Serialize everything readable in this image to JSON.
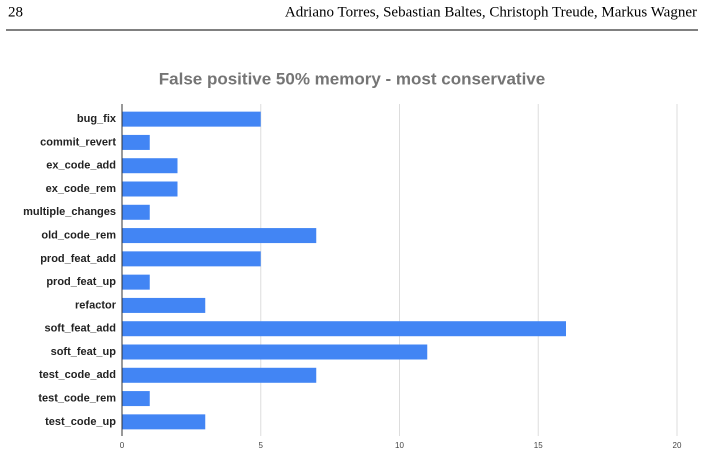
{
  "header": {
    "page_number": "28",
    "authors": "Adriano Torres, Sebastian Baltes, Christoph Treude, Markus Wagner"
  },
  "chart_data": {
    "type": "bar",
    "orientation": "horizontal",
    "title": "False positive 50% memory - most conservative",
    "categories": [
      "bug_fix",
      "commit_revert",
      "ex_code_add",
      "ex_code_rem",
      "multiple_changes",
      "old_code_rem",
      "prod_feat_add",
      "prod_feat_up",
      "refactor",
      "soft_feat_add",
      "soft_feat_up",
      "test_code_add",
      "test_code_rem",
      "test_code_up"
    ],
    "values": [
      5,
      1,
      2,
      2,
      1,
      7,
      5,
      1,
      3,
      16,
      11,
      7,
      1,
      3
    ],
    "color": "#4285f4",
    "xlim": [
      0,
      20
    ],
    "xticks": [
      0,
      5,
      10,
      15,
      20
    ],
    "grid": true
  }
}
